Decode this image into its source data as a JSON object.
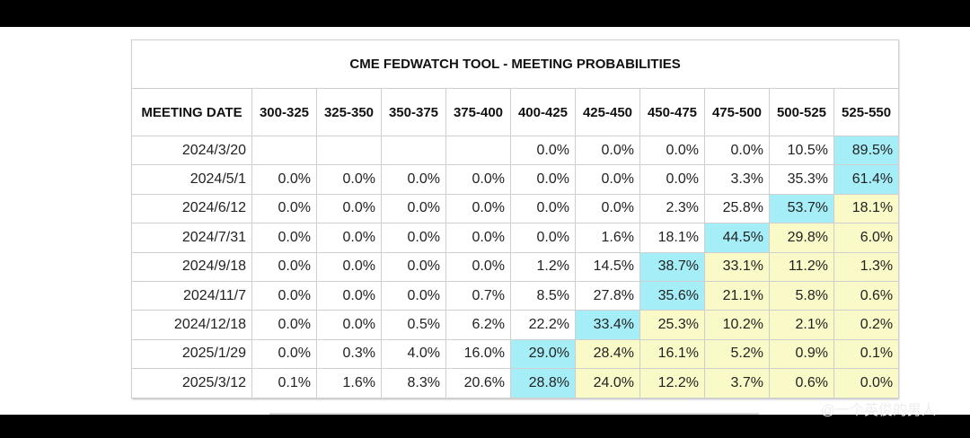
{
  "table": {
    "title": "CME FEDWATCH TOOL - MEETING PROBABILITIES",
    "columns": [
      "MEETING DATE",
      "300-325",
      "325-350",
      "350-375",
      "375-400",
      "400-425",
      "425-450",
      "450-475",
      "475-500",
      "500-525",
      "525-550"
    ],
    "rows": [
      [
        "2024/3/20",
        null,
        null,
        null,
        null,
        "0.0%",
        "0.0%",
        "0.0%",
        "0.0%",
        "10.5%",
        "89.5%"
      ],
      [
        "2024/5/1",
        "0.0%",
        "0.0%",
        "0.0%",
        "0.0%",
        "0.0%",
        "0.0%",
        "0.0%",
        "3.3%",
        "35.3%",
        "61.4%"
      ],
      [
        "2024/6/12",
        "0.0%",
        "0.0%",
        "0.0%",
        "0.0%",
        "0.0%",
        "0.0%",
        "2.3%",
        "25.8%",
        "53.7%",
        "18.1%"
      ],
      [
        "2024/7/31",
        "0.0%",
        "0.0%",
        "0.0%",
        "0.0%",
        "0.0%",
        "1.6%",
        "18.1%",
        "44.5%",
        "29.8%",
        "6.0%"
      ],
      [
        "2024/9/18",
        "0.0%",
        "0.0%",
        "0.0%",
        "0.0%",
        "1.2%",
        "14.5%",
        "38.7%",
        "33.1%",
        "11.2%",
        "1.3%"
      ],
      [
        "2024/11/7",
        "0.0%",
        "0.0%",
        "0.0%",
        "0.7%",
        "8.5%",
        "27.8%",
        "35.6%",
        "21.1%",
        "5.8%",
        "0.6%"
      ],
      [
        "2024/12/18",
        "0.0%",
        "0.0%",
        "0.5%",
        "6.2%",
        "22.2%",
        "33.4%",
        "25.3%",
        "10.2%",
        "2.1%",
        "0.2%"
      ],
      [
        "2025/1/29",
        "0.0%",
        "0.3%",
        "4.0%",
        "16.0%",
        "29.0%",
        "28.4%",
        "16.1%",
        "5.2%",
        "0.9%",
        "0.1%"
      ],
      [
        "2025/3/12",
        "0.1%",
        "1.6%",
        "8.3%",
        "20.6%",
        "28.8%",
        "24.0%",
        "12.2%",
        "3.7%",
        "0.6%",
        "0.0%"
      ]
    ],
    "max_color": "#a6eef7",
    "above_color": "#fafac8"
  },
  "watermark": "@一个英俊的男人"
}
